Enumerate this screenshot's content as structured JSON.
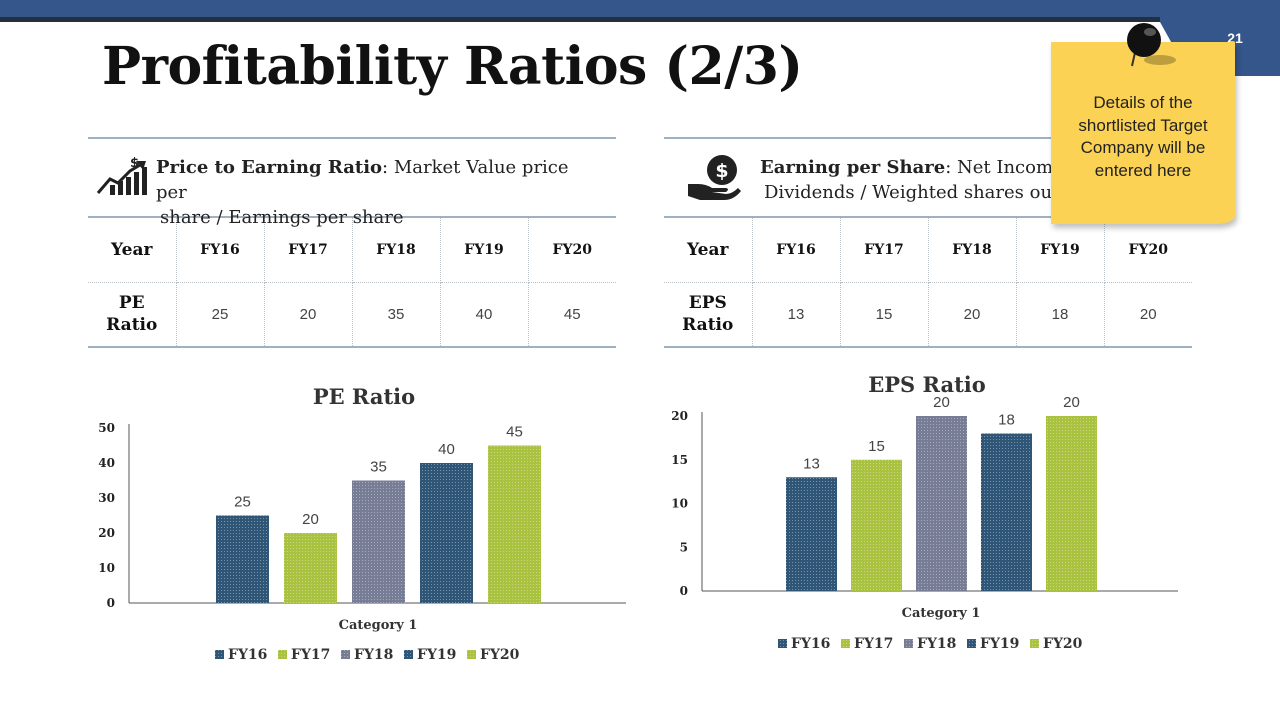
{
  "slide": {
    "title": "Profitability Ratios (2/3)",
    "page_number": "21"
  },
  "colors": {
    "header_blue": "#34568b",
    "fy16": "#2f5676",
    "fy17": "#a9c23f",
    "fy18": "#777d95",
    "fy19": "#2f5676",
    "fy20": "#a9c23f",
    "sticky": "#fbd254"
  },
  "sticky_note": {
    "text": "Details of the shortlisted Target Company will be entered here"
  },
  "pe_panel": {
    "icon": "growth-chart-dollar-icon",
    "heading": "Price to Earning Ratio",
    "description_line1": ": Market Value price per",
    "description_line2": "share / Earnings per share",
    "table": {
      "header_label": "Year",
      "columns": [
        "FY16",
        "FY17",
        "FY18",
        "FY19",
        "FY20"
      ],
      "row_label_line1": "PE",
      "row_label_line2": "Ratio",
      "values": [
        "25",
        "20",
        "35",
        "40",
        "45"
      ]
    }
  },
  "eps_panel": {
    "icon": "hand-dollar-icon",
    "heading": "Earning per Share",
    "description_line1": ": Net Income",
    "description_line2": "Dividends / Weighted shares ou",
    "table": {
      "header_label": "Year",
      "columns": [
        "FY16",
        "FY17",
        "FY18",
        "FY19",
        "FY20"
      ],
      "row_label_line1": "EPS",
      "row_label_line2": "Ratio",
      "values": [
        "13",
        "15",
        "20",
        "18",
        "20"
      ]
    }
  },
  "chart_data": [
    {
      "type": "bar",
      "title": "PE Ratio",
      "categories": [
        "Category 1"
      ],
      "xlabel": "Category 1",
      "ylabel": "",
      "ylim": [
        0,
        50
      ],
      "yticks": [
        0,
        10,
        20,
        30,
        40,
        50
      ],
      "legend": "bottom",
      "series": [
        {
          "name": "FY16",
          "values": [
            25
          ]
        },
        {
          "name": "FY17",
          "values": [
            20
          ]
        },
        {
          "name": "FY18",
          "values": [
            35
          ]
        },
        {
          "name": "FY19",
          "values": [
            40
          ]
        },
        {
          "name": "FY20",
          "values": [
            45
          ]
        }
      ]
    },
    {
      "type": "bar",
      "title": "EPS Ratio",
      "categories": [
        "Category 1"
      ],
      "xlabel": "Category 1",
      "ylabel": "",
      "ylim": [
        0,
        20
      ],
      "yticks": [
        0,
        5,
        10,
        15,
        20
      ],
      "legend": "bottom",
      "series": [
        {
          "name": "FY16",
          "values": [
            13
          ]
        },
        {
          "name": "FY17",
          "values": [
            15
          ]
        },
        {
          "name": "FY18",
          "values": [
            20
          ]
        },
        {
          "name": "FY19",
          "values": [
            18
          ]
        },
        {
          "name": "FY20",
          "values": [
            20
          ]
        }
      ]
    }
  ]
}
